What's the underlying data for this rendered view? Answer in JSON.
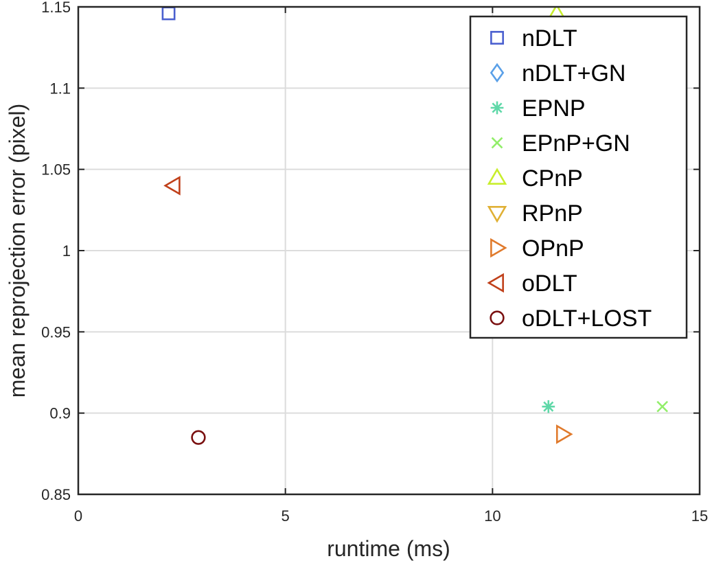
{
  "chart_data": {
    "type": "scatter",
    "xlabel": "runtime (ms)",
    "ylabel": "mean reprojection error (pixel)",
    "xlim": [
      0,
      15
    ],
    "ylim": [
      0.85,
      1.15
    ],
    "xticks": [
      0,
      5,
      10,
      15
    ],
    "xtick_labels": [
      "0",
      "5",
      "10",
      "15"
    ],
    "yticks": [
      0.85,
      0.9,
      0.95,
      1,
      1.05,
      1.1,
      1.15
    ],
    "ytick_labels": [
      "0.85",
      "0.9",
      "0.95",
      "1",
      "1.05",
      "1.1",
      "1.15"
    ],
    "grid": true,
    "legend_position": "top-right",
    "series": [
      {
        "name": "nDLT",
        "marker": "square",
        "color": "#4a5fcf",
        "x": [
          2.18
        ],
        "y": [
          1.146
        ]
      },
      {
        "name": "nDLT+GN",
        "marker": "diamond",
        "color": "#5aa0e8",
        "x": [],
        "y": []
      },
      {
        "name": "EPNP",
        "marker": "asterisk",
        "color": "#5fd8a8",
        "x": [
          11.35
        ],
        "y": [
          0.904
        ]
      },
      {
        "name": "EPnP+GN",
        "marker": "x",
        "color": "#92ee6a",
        "x": [
          14.1
        ],
        "y": [
          0.904
        ]
      },
      {
        "name": "CPnP",
        "marker": "triangle-up",
        "color": "#c8ee2c",
        "x": [
          11.55
        ],
        "y": [
          1.146
        ]
      },
      {
        "name": "RPnP",
        "marker": "triangle-down",
        "color": "#e0b034",
        "x": [],
        "y": []
      },
      {
        "name": "OPnP",
        "marker": "triangle-right",
        "color": "#e07a2c",
        "x": [
          11.7
        ],
        "y": [
          0.887
        ]
      },
      {
        "name": "oDLT",
        "marker": "triangle-left",
        "color": "#c0401a",
        "x": [
          2.3
        ],
        "y": [
          1.04
        ]
      },
      {
        "name": "oDLT+LOST",
        "marker": "circle",
        "color": "#7a1010",
        "x": [
          2.9
        ],
        "y": [
          0.885
        ]
      }
    ]
  }
}
